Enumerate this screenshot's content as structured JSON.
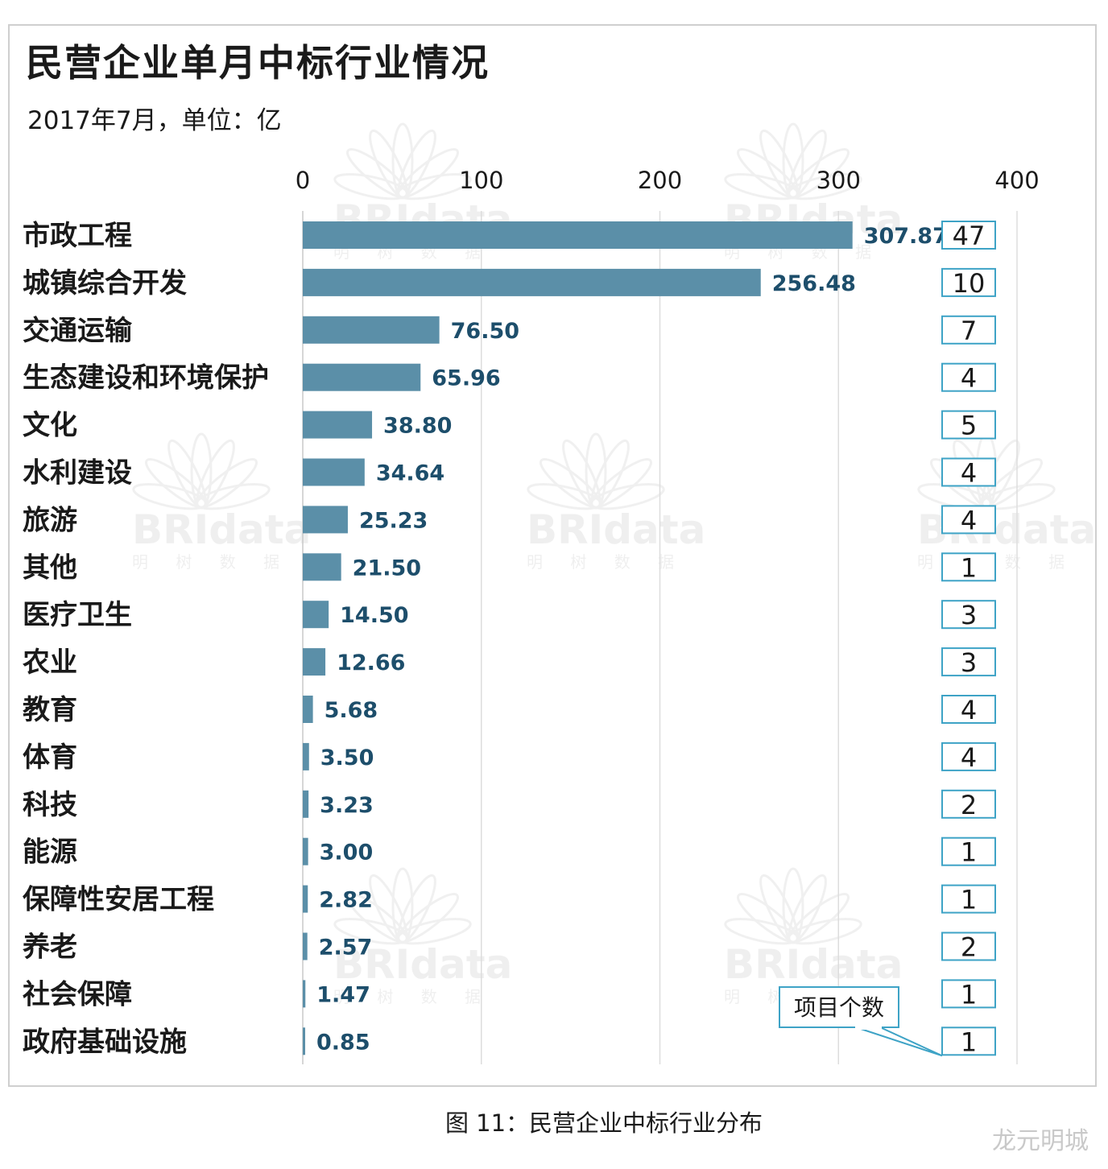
{
  "title": "民营企业单月中标行业情况",
  "subtitle": "2017年7月，单位：亿",
  "caption": "图 11：民营企业中标行业分布",
  "footer": "龙元明城",
  "watermark": {
    "brand": "BRIdata",
    "sub": "明 树 数 据"
  },
  "colors": {
    "bar": "#5b8fa8",
    "value_label": "#1d4e6b",
    "box_border": "#3ea3c6",
    "grid": "#dddddd"
  },
  "chart_data": {
    "type": "bar",
    "orientation": "horizontal",
    "title": "民营企业单月中标行业情况",
    "subtitle": "2017年7月，单位：亿",
    "xlim": [
      0,
      400
    ],
    "xticks": [
      0,
      100,
      200,
      300,
      400
    ],
    "grid": true,
    "categories": [
      "市政工程",
      "城镇综合开发",
      "交通运输",
      "生态建设和环境保护",
      "文化",
      "水利建设",
      "旅游",
      "其他",
      "医疗卫生",
      "农业",
      "教育",
      "体育",
      "科技",
      "能源",
      "保障性安居工程",
      "养老",
      "社会保障",
      "政府基础设施"
    ],
    "values": [
      307.87,
      256.48,
      76.5,
      65.96,
      38.8,
      34.64,
      25.23,
      21.5,
      14.5,
      12.66,
      5.68,
      3.5,
      3.23,
      3.0,
      2.82,
      2.57,
      1.47,
      0.85
    ],
    "value_labels": [
      "307.87",
      "256.48",
      "76.50",
      "65.96",
      "38.80",
      "34.64",
      "25.23",
      "21.50",
      "14.50",
      "12.66",
      "5.68",
      "3.50",
      "3.23",
      "3.00",
      "2.82",
      "2.57",
      "1.47",
      "0.85"
    ],
    "project_counts": [
      47,
      10,
      7,
      4,
      5,
      4,
      4,
      1,
      3,
      3,
      4,
      4,
      2,
      1,
      1,
      2,
      1,
      1
    ],
    "count_callout": "项目个数"
  }
}
